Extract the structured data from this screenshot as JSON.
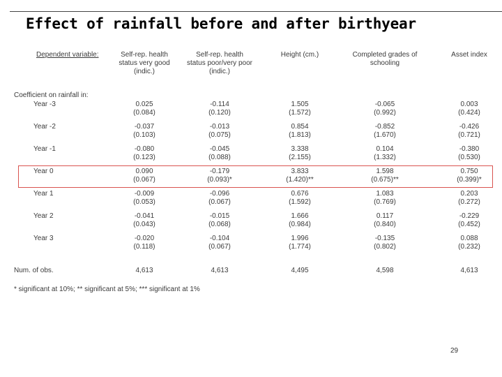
{
  "slide": {
    "title": "Effect of rainfall before and after birthyear",
    "page_number": "29",
    "highlight_color": "#d9534f"
  },
  "table": {
    "dependent_label": "Dependent variable:",
    "columns": [
      {
        "lines": [
          "Self-rep. health",
          "status very good",
          "(indic.)"
        ]
      },
      {
        "lines": [
          "Self-rep. health",
          "status poor/very poor",
          "(indic.)"
        ]
      },
      {
        "lines": [
          "Height (cm.)"
        ]
      },
      {
        "lines": [
          "Completed grades of",
          "schooling"
        ]
      },
      {
        "lines": [
          "Asset index"
        ]
      }
    ],
    "coef_label": "Coefficient on rainfall in:",
    "rows": [
      {
        "label": "Year -3",
        "coef": [
          "0.025",
          "-0.114",
          "1.505",
          "-0.065",
          "0.003"
        ],
        "se": [
          "(0.084)",
          "(0.120)",
          "(1.572)",
          "(0.992)",
          "(0.424)"
        ]
      },
      {
        "label": "Year -2",
        "coef": [
          "-0.037",
          "-0.013",
          "0.854",
          "-0.852",
          "-0.426"
        ],
        "se": [
          "(0.103)",
          "(0.075)",
          "(1.813)",
          "(1.670)",
          "(0.721)"
        ]
      },
      {
        "label": "Year -1",
        "coef": [
          "-0.080",
          "-0.045",
          "3.338",
          "0.104",
          "-0.380"
        ],
        "se": [
          "(0.123)",
          "(0.088)",
          "(2.155)",
          "(1.332)",
          "(0.530)"
        ]
      },
      {
        "label": "Year 0",
        "coef": [
          "0.090",
          "-0.179",
          "3.833",
          "1.598",
          "0.750"
        ],
        "se": [
          "(0.067)",
          "(0.093)*",
          "(1.420)**",
          "(0.675)**",
          "(0.399)*"
        ]
      },
      {
        "label": "Year 1",
        "coef": [
          "-0.009",
          "-0.096",
          "0.676",
          "1.083",
          "0.203"
        ],
        "se": [
          "(0.053)",
          "(0.067)",
          "(1.592)",
          "(0.769)",
          "(0.272)"
        ]
      },
      {
        "label": "Year 2",
        "coef": [
          "-0.041",
          "-0.015",
          "1.666",
          "0.117",
          "-0.229"
        ],
        "se": [
          "(0.043)",
          "(0.068)",
          "(0.984)",
          "(0.840)",
          "(0.452)"
        ]
      },
      {
        "label": "Year 3",
        "coef": [
          "-0.020",
          "-0.104",
          "1.996",
          "-0.135",
          "0.088"
        ],
        "se": [
          "(0.118)",
          "(0.067)",
          "(1.774)",
          "(0.802)",
          "(0.232)"
        ]
      }
    ],
    "nobs_label": "Num. of obs.",
    "nobs": [
      "4,613",
      "4,613",
      "4,495",
      "4,598",
      "4,613"
    ],
    "footnote": "* significant at 10%; ** significant at 5%; *** significant at 1%"
  }
}
